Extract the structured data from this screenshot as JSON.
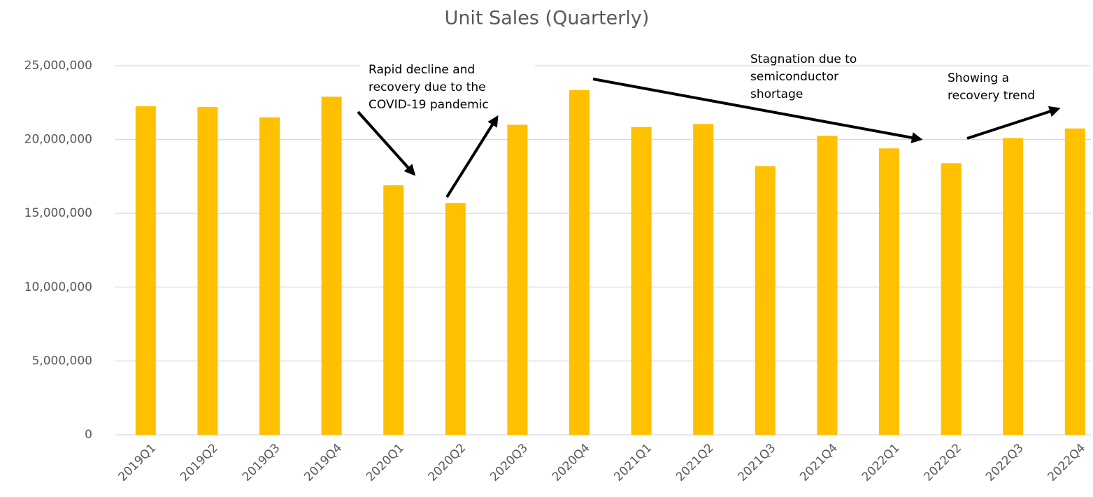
{
  "chart_data": {
    "type": "bar",
    "title": "Unit Sales (Quarterly)",
    "categories": [
      "2019Q1",
      "2019Q2",
      "2019Q3",
      "2019Q4",
      "2020Q1",
      "2020Q2",
      "2020Q3",
      "2020Q4",
      "2021Q1",
      "2021Q2",
      "2021Q3",
      "2021Q4",
      "2022Q1",
      "2022Q2",
      "2022Q3",
      "2022Q4"
    ],
    "values": [
      22250000,
      22200000,
      21500000,
      22900000,
      16900000,
      15700000,
      21000000,
      23350000,
      20850000,
      21050000,
      18200000,
      20250000,
      19400000,
      18400000,
      20100000,
      20750000
    ],
    "color": "#ffc000",
    "ylim": [
      0,
      25000000
    ],
    "yticks": [
      0,
      {
        "value": 5000000,
        "label": "5,000,000"
      },
      {
        "value": 10000000,
        "label": "10,000,000"
      },
      {
        "value": 15000000,
        "label": "15,000,000"
      },
      {
        "value": 20000000,
        "label": "20,000,000"
      },
      {
        "value": 25000000,
        "label": "25,000,000"
      }
    ],
    "grid": true,
    "annotations": [
      [
        "Rapid decline and",
        "recovery due to the",
        "COVID-19 pandemic"
      ],
      [
        "Stagnation due to",
        "semiconductor",
        "shortage"
      ],
      [
        "Showing a",
        "recovery trend"
      ]
    ]
  }
}
